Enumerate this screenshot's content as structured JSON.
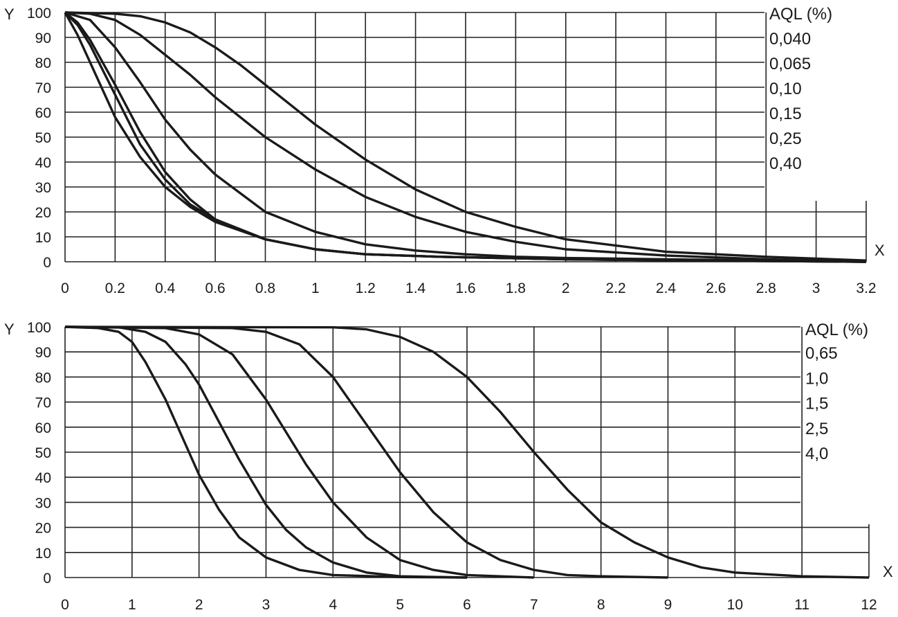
{
  "chart_data": [
    {
      "type": "line",
      "x_label": "X",
      "y_label": "Y",
      "legend_title": "AQL (%)",
      "xlim": [
        0,
        3.2
      ],
      "ylim": [
        0,
        100
      ],
      "x_ticks": [
        "0",
        "0.2",
        "0.4",
        "0.6",
        "0.8",
        "1",
        "1.2",
        "1.4",
        "1.6",
        "1.8",
        "2",
        "2.2",
        "2.4",
        "2.6",
        "2.8",
        "3",
        "3.2"
      ],
      "y_ticks": [
        "0",
        "10",
        "20",
        "30",
        "40",
        "50",
        "60",
        "70",
        "80",
        "90",
        "100"
      ],
      "grid": true,
      "series": [
        {
          "name": "0,040",
          "x": [
            0,
            0.05,
            0.1,
            0.2,
            0.3,
            0.4,
            0.5,
            0.6,
            0.8,
            1.0,
            1.2,
            1.5,
            2.0,
            2.5,
            3.2
          ],
          "y": [
            100,
            91,
            80,
            58,
            42,
            30,
            22,
            16,
            9,
            5,
            3,
            2,
            1,
            0.5,
            0
          ]
        },
        {
          "name": "0,065",
          "x": [
            0,
            0.05,
            0.1,
            0.2,
            0.3,
            0.4,
            0.5,
            0.6,
            0.8,
            1.0,
            1.2,
            1.5,
            2.0,
            2.5,
            3.2
          ],
          "y": [
            100,
            95,
            87,
            67,
            47,
            33,
            23,
            17,
            9,
            5,
            3,
            2,
            1,
            0.5,
            0
          ]
        },
        {
          "name": "0,10",
          "x": [
            0,
            0.05,
            0.1,
            0.2,
            0.3,
            0.4,
            0.5,
            0.6,
            0.8,
            1.0,
            1.2,
            1.5,
            2.0,
            2.5,
            3.2
          ],
          "y": [
            100,
            96,
            89,
            71,
            52,
            36,
            25,
            17,
            9,
            5,
            3,
            2,
            1,
            0.5,
            0
          ]
        },
        {
          "name": "0,15",
          "x": [
            0,
            0.1,
            0.2,
            0.3,
            0.4,
            0.5,
            0.6,
            0.8,
            1.0,
            1.2,
            1.4,
            1.6,
            1.8,
            2.0,
            2.4,
            2.8,
            3.2
          ],
          "y": [
            100,
            97,
            86,
            72,
            57,
            45,
            35,
            20,
            12,
            7,
            4.5,
            3,
            2,
            1.5,
            1,
            0.5,
            0
          ]
        },
        {
          "name": "0,25",
          "x": [
            0,
            0.1,
            0.2,
            0.3,
            0.4,
            0.5,
            0.6,
            0.8,
            1.0,
            1.2,
            1.4,
            1.6,
            1.8,
            2.0,
            2.4,
            2.8,
            3.2
          ],
          "y": [
            100,
            99.5,
            97,
            91,
            83,
            75,
            66,
            50,
            37,
            26,
            18,
            12,
            8,
            5,
            2.5,
            1,
            0
          ]
        },
        {
          "name": "0,40",
          "x": [
            0,
            0.2,
            0.3,
            0.4,
            0.5,
            0.6,
            0.7,
            0.8,
            0.9,
            1.0,
            1.2,
            1.4,
            1.6,
            1.8,
            2.0,
            2.4,
            2.8,
            3.2
          ],
          "y": [
            100,
            99.5,
            98.5,
            96,
            92,
            86,
            79,
            71,
            63,
            55,
            41,
            29,
            20,
            14,
            9,
            4,
            2,
            0.5
          ]
        }
      ]
    },
    {
      "type": "line",
      "x_label": "X",
      "y_label": "Y",
      "legend_title": "AQL (%)",
      "xlim": [
        0,
        12
      ],
      "ylim": [
        0,
        100
      ],
      "x_ticks": [
        "0",
        "1",
        "2",
        "3",
        "4",
        "5",
        "6",
        "7",
        "8",
        "9",
        "10",
        "11",
        "12"
      ],
      "y_ticks": [
        "0",
        "10",
        "20",
        "30",
        "40",
        "50",
        "60",
        "70",
        "80",
        "90",
        "100"
      ],
      "grid": true,
      "series": [
        {
          "name": "0,65",
          "x": [
            0,
            0.5,
            0.8,
            1.0,
            1.2,
            1.5,
            1.8,
            2.0,
            2.3,
            2.6,
            3.0,
            3.5,
            4.0,
            5.0,
            6.0
          ],
          "y": [
            100,
            99.5,
            98,
            94,
            86,
            71,
            53,
            41,
            27,
            16,
            8,
            3,
            1,
            0.2,
            0
          ]
        },
        {
          "name": "1,0",
          "x": [
            0,
            0.8,
            1.2,
            1.5,
            1.8,
            2.0,
            2.3,
            2.6,
            3.0,
            3.3,
            3.6,
            4.0,
            4.5,
            5.0,
            6.0
          ],
          "y": [
            100,
            99.8,
            98,
            94,
            85,
            77,
            62,
            47,
            29,
            19,
            12,
            6,
            2,
            0.5,
            0
          ]
        },
        {
          "name": "1,5",
          "x": [
            0,
            1.5,
            2.0,
            2.5,
            3.0,
            3.3,
            3.6,
            4.0,
            4.5,
            5.0,
            5.5,
            6.0,
            7.0
          ],
          "y": [
            100,
            99.5,
            97,
            89,
            71,
            58,
            45,
            30,
            16,
            7,
            3,
            1,
            0
          ]
        },
        {
          "name": "2,5",
          "x": [
            0,
            2.5,
            3.0,
            3.5,
            4.0,
            4.5,
            5.0,
            5.5,
            6.0,
            6.5,
            7.0,
            7.5,
            8.0,
            9.0
          ],
          "y": [
            100,
            99.5,
            98,
            93,
            80,
            61,
            42,
            26,
            14,
            7,
            3,
            1,
            0.5,
            0
          ]
        },
        {
          "name": "4,0",
          "x": [
            0,
            4.0,
            4.5,
            5.0,
            5.5,
            6.0,
            6.5,
            7.0,
            7.5,
            8.0,
            8.5,
            9.0,
            9.5,
            10.0,
            11.0,
            12.0
          ],
          "y": [
            100,
            99.8,
            99,
            96,
            90,
            80,
            66,
            50,
            35,
            22,
            14,
            8,
            4,
            2,
            0.5,
            0
          ]
        }
      ]
    }
  ]
}
